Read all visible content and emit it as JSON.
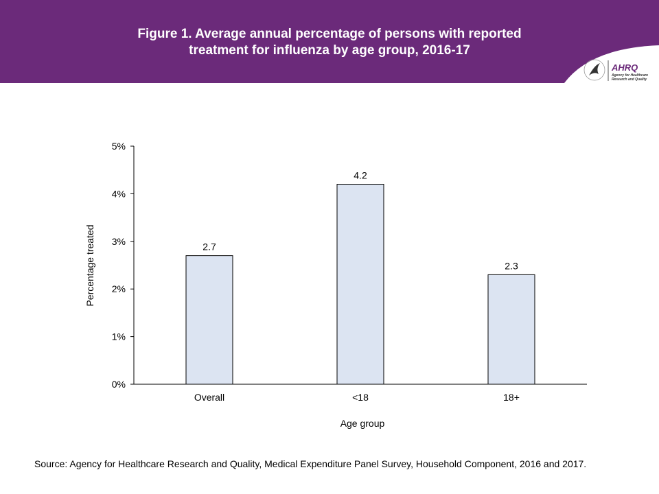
{
  "header": {
    "title_line1": "Figure 1. Average annual percentage of persons with reported",
    "title_line2": "treatment for influenza by age group, 2016-17",
    "logo_text": "AHRQ Agency for Healthcare Research and Quality",
    "colors": {
      "background": "#6b2a7a",
      "text": "#ffffff"
    }
  },
  "chart_data": {
    "type": "bar",
    "categories": [
      "Overall",
      "<18",
      "18+"
    ],
    "values": [
      2.7,
      4.2,
      2.3
    ],
    "data_labels": [
      "2.7",
      "4.2",
      "2.3"
    ],
    "xlabel": "Age group",
    "ylabel": "Percentage treated",
    "ylim": [
      0,
      5
    ],
    "yticks": [
      "0%",
      "1%",
      "2%",
      "3%",
      "4%",
      "5%"
    ],
    "grid": false,
    "legend": "none",
    "bar_color": "#dce4f2"
  },
  "footer": {
    "source": "Source: Agency for Healthcare Research and Quality, Medical Expenditure Panel Survey, Household Component, 2016 and 2017."
  }
}
